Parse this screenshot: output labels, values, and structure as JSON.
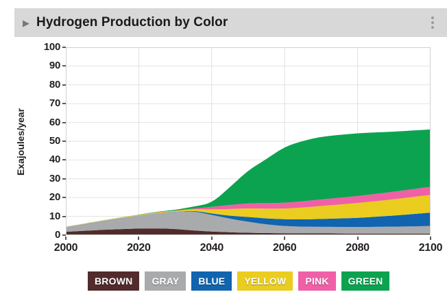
{
  "header": {
    "title": "Hydrogen Production by Color",
    "collapse_icon": "triangle-right",
    "menu_icon": "kebab-vertical",
    "background_color": "#d8d8d8"
  },
  "chart_data": {
    "type": "area",
    "stacked": true,
    "title": "Hydrogen Production by Color",
    "xlabel": "",
    "ylabel": "Exajoules/year",
    "xlim": [
      2000,
      2100
    ],
    "ylim": [
      0,
      100
    ],
    "x_ticks": [
      2000,
      2020,
      2040,
      2060,
      2080,
      2100
    ],
    "y_ticks": [
      0,
      10,
      20,
      30,
      40,
      50,
      60,
      70,
      80,
      90,
      100
    ],
    "grid": true,
    "legend_position": "bottom",
    "x": [
      2000,
      2005,
      2010,
      2015,
      2020,
      2025,
      2030,
      2035,
      2040,
      2045,
      2050,
      2055,
      2060,
      2065,
      2070,
      2075,
      2080,
      2085,
      2090,
      2095,
      2100
    ],
    "series": [
      {
        "name": "BROWN",
        "color": "#522b2c",
        "values": [
          1.8,
          2.3,
          2.8,
          3.2,
          3.5,
          3.6,
          3.3,
          2.5,
          1.9,
          1.5,
          1.3,
          1.1,
          1.0,
          0.9,
          0.9,
          0.9,
          0.8,
          0.8,
          0.8,
          0.8,
          0.8
        ]
      },
      {
        "name": "GRAY",
        "color": "#a8aaac",
        "values": [
          2.6,
          3.7,
          4.9,
          6.0,
          7.0,
          8.2,
          9.0,
          10.3,
          8.9,
          7.2,
          5.8,
          4.6,
          3.8,
          3.6,
          3.5,
          3.5,
          3.5,
          3.6,
          3.7,
          3.9,
          4.1
        ]
      },
      {
        "name": "BLUE",
        "color": "#1164af",
        "values": [
          0,
          0,
          0,
          0,
          0,
          0,
          0.1,
          0.3,
          0.7,
          1.6,
          2.6,
          3.2,
          3.6,
          3.9,
          4.2,
          4.5,
          4.9,
          5.4,
          5.9,
          6.5,
          7.1
        ]
      },
      {
        "name": "YELLOW",
        "color": "#eacd1e",
        "values": [
          0.1,
          0.1,
          0.2,
          0.3,
          0.3,
          0.4,
          0.5,
          0.8,
          2.2,
          3.6,
          4.6,
          5.2,
          5.7,
          6.3,
          6.9,
          7.4,
          7.9,
          8.3,
          8.7,
          9.1,
          9.4
        ]
      },
      {
        "name": "PINK",
        "color": "#ef60a7",
        "values": [
          0,
          0,
          0,
          0,
          0,
          0.1,
          0.1,
          0.3,
          1.3,
          2.2,
          2.7,
          2.9,
          3.1,
          3.3,
          3.5,
          3.6,
          3.7,
          3.9,
          4.0,
          4.2,
          4.3
        ]
      },
      {
        "name": "GREEN",
        "color": "#0ca350",
        "values": [
          0,
          0,
          0,
          0,
          0.1,
          0.2,
          0.4,
          1.0,
          2.0,
          9.5,
          17.5,
          23.5,
          29.9,
          32.2,
          33.4,
          33.5,
          33.4,
          32.7,
          32.0,
          31.2,
          30.6
        ]
      }
    ],
    "totals_hint": {
      "2000": 4.5,
      "2020": 10.9,
      "2040": 17.0,
      "2060": 47.1,
      "2080": 54.2,
      "2100": 56.3
    },
    "grid_color": "#e2e2e2",
    "border_color": "#d0d0d0"
  }
}
